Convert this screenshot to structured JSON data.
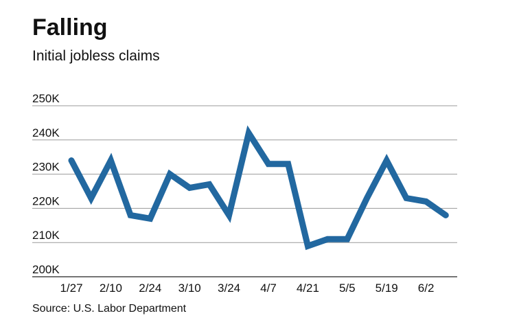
{
  "chart_data": {
    "type": "line",
    "title": "Falling",
    "subtitle": "Initial jobless claims",
    "source": "Source: U.S. Labor Department",
    "x_tick_labels": [
      "1/27",
      "2/10",
      "2/24",
      "3/10",
      "3/24",
      "4/7",
      "4/21",
      "5/5",
      "5/19",
      "6/2"
    ],
    "y_tick_labels": [
      "250K",
      "240K",
      "230K",
      "220K",
      "210K",
      "200K"
    ],
    "y_tick_values": [
      250,
      240,
      230,
      220,
      210,
      200
    ],
    "ylim": [
      200,
      250
    ],
    "y_unit": "thousands",
    "grid": true,
    "line_color": "#2268a0",
    "series": [
      {
        "x": [
          "1/27",
          "2/3",
          "2/10",
          "2/17",
          "2/24",
          "3/3",
          "3/10",
          "3/17",
          "3/24",
          "3/31",
          "4/7",
          "4/14",
          "4/21",
          "4/28",
          "5/5",
          "5/12",
          "5/19",
          "5/26",
          "6/2",
          "6/9"
        ],
        "values": [
          234,
          223,
          234,
          218,
          217,
          230,
          226,
          227,
          218,
          242,
          233,
          233,
          209,
          211,
          211,
          223,
          234,
          223,
          222,
          218
        ]
      }
    ]
  }
}
